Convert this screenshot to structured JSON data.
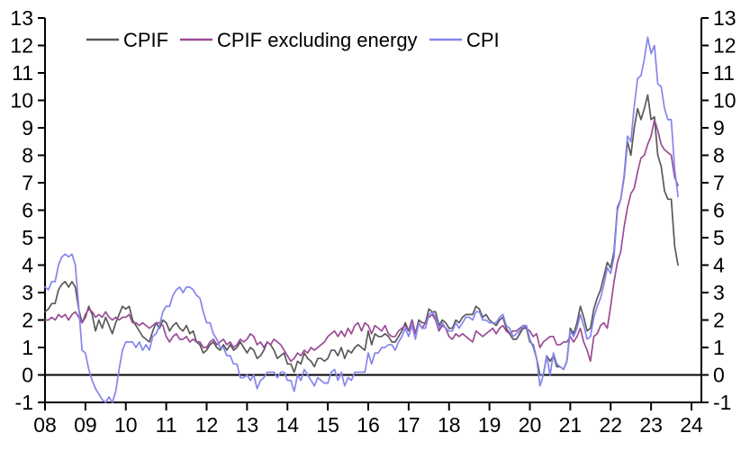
{
  "chart_data": {
    "type": "line",
    "title": "",
    "xlabel": "",
    "ylabel": "",
    "background": "#ffffff",
    "axis_color": "#000000",
    "grid": false,
    "zero_line": true,
    "legend_position": "top",
    "y_axis": {
      "min": -1,
      "max": 13,
      "tick_step": 1,
      "sides": "both",
      "tick_labels": [
        "-1",
        "0",
        "1",
        "2",
        "3",
        "4",
        "5",
        "6",
        "7",
        "8",
        "9",
        "10",
        "11",
        "12",
        "13"
      ]
    },
    "x_axis": {
      "start_year": 2008,
      "end_year": 2024,
      "frequency": "monthly",
      "tick_labels": [
        "08",
        "09",
        "10",
        "11",
        "12",
        "13",
        "14",
        "15",
        "16",
        "17",
        "18",
        "19",
        "20",
        "21",
        "22",
        "23",
        "24"
      ]
    },
    "data_start": "2008-01",
    "data_end": "2023-09",
    "series": [
      {
        "name": "CPIF",
        "color": "#595959",
        "values": [
          2.3,
          2.4,
          2.6,
          2.6,
          3.1,
          3.3,
          3.4,
          3.2,
          3.4,
          3.2,
          2.4,
          1.9,
          2.1,
          2.5,
          2.2,
          1.6,
          2.0,
          1.7,
          2.1,
          1.8,
          1.5,
          1.9,
          2.2,
          2.5,
          2.4,
          2.5,
          2.0,
          1.8,
          1.6,
          1.4,
          1.3,
          1.2,
          1.6,
          1.9,
          1.7,
          2.0,
          1.9,
          1.6,
          1.8,
          1.9,
          1.7,
          1.6,
          1.8,
          1.5,
          1.6,
          1.2,
          1.1,
          0.8,
          0.9,
          1.1,
          1.2,
          1.0,
          0.9,
          1.1,
          0.9,
          1.1,
          0.9,
          1.0,
          1.2,
          1.0,
          0.8,
          1.0,
          0.9,
          0.6,
          0.7,
          0.9,
          1.2,
          1.1,
          0.9,
          0.6,
          0.7,
          0.8,
          0.4,
          0.4,
          0.1,
          0.5,
          0.4,
          0.8,
          0.6,
          0.5,
          0.3,
          0.6,
          0.6,
          0.5,
          0.6,
          0.9,
          0.9,
          0.7,
          1.0,
          0.6,
          0.9,
          0.8,
          1.0,
          1.1,
          1.0,
          0.9,
          1.6,
          1.1,
          1.5,
          1.4,
          1.4,
          1.5,
          1.4,
          1.2,
          1.2,
          1.4,
          1.6,
          1.9,
          1.6,
          2.0,
          1.5,
          2.0,
          1.9,
          1.9,
          2.4,
          2.3,
          2.3,
          1.8,
          2.0,
          1.9,
          1.7,
          1.7,
          2.0,
          1.9,
          2.1,
          2.2,
          2.2,
          2.2,
          2.5,
          2.4,
          2.1,
          2.2,
          2.0,
          1.9,
          1.8,
          2.0,
          2.1,
          1.7,
          1.5,
          1.3,
          1.3,
          1.5,
          1.7,
          1.7,
          1.2,
          1.1,
          0.6,
          0.0,
          0.0,
          0.7,
          0.5,
          0.7,
          0.3,
          0.3,
          0.2,
          0.5,
          1.7,
          1.5,
          1.9,
          2.5,
          2.1,
          1.6,
          1.7,
          2.4,
          2.8,
          3.1,
          3.6,
          4.1,
          3.9,
          4.5,
          6.1,
          6.4,
          7.2,
          8.5,
          8.0,
          9.0,
          9.7,
          9.3,
          9.7,
          10.2,
          9.3,
          9.4,
          8.0,
          7.6,
          6.7,
          6.4,
          6.4,
          4.7,
          4.0
        ]
      },
      {
        "name": "CPIF excluding energy",
        "color": "#9a4b96",
        "values": [
          2.0,
          2.0,
          2.1,
          2.0,
          2.2,
          2.1,
          2.2,
          2.0,
          2.2,
          2.3,
          2.1,
          1.9,
          2.2,
          2.4,
          2.3,
          2.1,
          2.2,
          2.1,
          2.3,
          2.1,
          2.0,
          2.1,
          2.0,
          2.1,
          2.1,
          2.2,
          1.9,
          1.9,
          1.8,
          1.9,
          1.8,
          1.7,
          1.8,
          1.9,
          1.9,
          1.8,
          1.4,
          1.2,
          1.4,
          1.5,
          1.3,
          1.3,
          1.4,
          1.2,
          1.3,
          1.2,
          1.2,
          1.0,
          1.0,
          1.2,
          1.3,
          1.1,
          1.2,
          1.3,
          1.1,
          1.2,
          1.0,
          1.1,
          1.3,
          1.2,
          1.3,
          1.5,
          1.4,
          1.1,
          1.2,
          1.0,
          1.2,
          1.1,
          1.3,
          1.2,
          1.1,
          0.9,
          0.7,
          0.5,
          0.6,
          0.8,
          0.7,
          0.9,
          0.8,
          1.0,
          0.9,
          1.0,
          1.1,
          1.2,
          1.4,
          1.5,
          1.6,
          1.4,
          1.6,
          1.4,
          1.7,
          1.5,
          1.8,
          1.9,
          1.6,
          1.9,
          1.8,
          1.5,
          1.8,
          1.7,
          1.6,
          1.8,
          1.5,
          1.4,
          1.4,
          1.6,
          1.7,
          1.8,
          1.6,
          2.0,
          1.5,
          1.9,
          1.7,
          1.9,
          2.1,
          2.2,
          2.0,
          1.6,
          1.8,
          1.7,
          1.4,
          1.3,
          1.5,
          1.4,
          1.5,
          1.4,
          1.3,
          1.2,
          1.6,
          1.5,
          1.4,
          1.5,
          1.6,
          1.7,
          1.5,
          1.7,
          1.8,
          1.6,
          1.5,
          1.6,
          1.6,
          1.7,
          1.8,
          1.7,
          1.6,
          1.4,
          1.5,
          1.0,
          1.2,
          1.3,
          1.4,
          1.4,
          1.1,
          1.1,
          1.2,
          1.2,
          1.4,
          1.2,
          1.4,
          1.7,
          1.2,
          0.9,
          0.5,
          1.4,
          1.5,
          1.8,
          1.9,
          1.7,
          2.5,
          3.4,
          4.1,
          4.5,
          5.4,
          6.1,
          6.6,
          6.8,
          7.4,
          7.9,
          8.0,
          8.4,
          8.7,
          9.3,
          8.9,
          8.4,
          8.2,
          8.1,
          8.0,
          7.2,
          6.9
        ]
      },
      {
        "name": "CPI",
        "color": "#8585ee",
        "values": [
          3.2,
          3.1,
          3.4,
          3.4,
          4.0,
          4.3,
          4.4,
          4.3,
          4.4,
          4.0,
          2.5,
          0.9,
          0.8,
          0.2,
          -0.2,
          -0.5,
          -0.7,
          -0.9,
          -1.0,
          -0.8,
          -1.0,
          -0.6,
          0.2,
          0.9,
          1.2,
          1.2,
          1.2,
          1.0,
          1.2,
          0.9,
          1.1,
          0.9,
          1.4,
          1.5,
          1.8,
          2.3,
          2.5,
          2.5,
          2.9,
          3.1,
          3.2,
          3.0,
          3.2,
          3.2,
          3.1,
          2.9,
          2.8,
          2.3,
          1.9,
          1.9,
          1.5,
          1.3,
          1.0,
          1.0,
          0.7,
          0.7,
          0.4,
          0.4,
          -0.1,
          -0.1,
          0.0,
          -0.2,
          0.0,
          -0.5,
          -0.2,
          -0.1,
          0.1,
          0.1,
          0.1,
          -0.1,
          0.1,
          0.1,
          -0.2,
          -0.2,
          -0.6,
          0.0,
          -0.2,
          0.2,
          0.0,
          -0.2,
          -0.4,
          -0.1,
          -0.2,
          -0.3,
          -0.3,
          0.1,
          0.2,
          -0.2,
          0.1,
          -0.4,
          -0.1,
          -0.2,
          0.1,
          0.1,
          0.1,
          0.1,
          0.8,
          0.4,
          0.8,
          0.8,
          1.0,
          1.0,
          1.1,
          1.1,
          0.9,
          1.2,
          1.4,
          1.7,
          1.4,
          1.8,
          1.3,
          1.9,
          1.7,
          1.7,
          2.2,
          2.3,
          2.1,
          1.7,
          1.9,
          1.7,
          1.6,
          1.6,
          1.9,
          1.7,
          1.9,
          2.1,
          2.1,
          2.0,
          2.3,
          2.3,
          2.0,
          2.0,
          1.9,
          1.9,
          1.9,
          2.1,
          2.2,
          1.8,
          1.7,
          1.4,
          1.5,
          1.6,
          1.8,
          1.8,
          1.3,
          1.0,
          0.6,
          -0.4,
          0.0,
          0.7,
          0.0,
          0.8,
          0.4,
          0.3,
          0.2,
          0.5,
          1.6,
          1.4,
          1.7,
          2.2,
          1.8,
          1.3,
          1.4,
          2.1,
          2.5,
          2.8,
          3.3,
          3.9,
          3.7,
          4.3,
          6.0,
          6.4,
          7.3,
          8.7,
          8.5,
          9.8,
          10.8,
          10.9,
          11.5,
          12.3,
          11.7,
          12.0,
          10.6,
          10.5,
          9.7,
          9.3,
          9.3,
          7.5,
          6.5
        ]
      }
    ]
  }
}
